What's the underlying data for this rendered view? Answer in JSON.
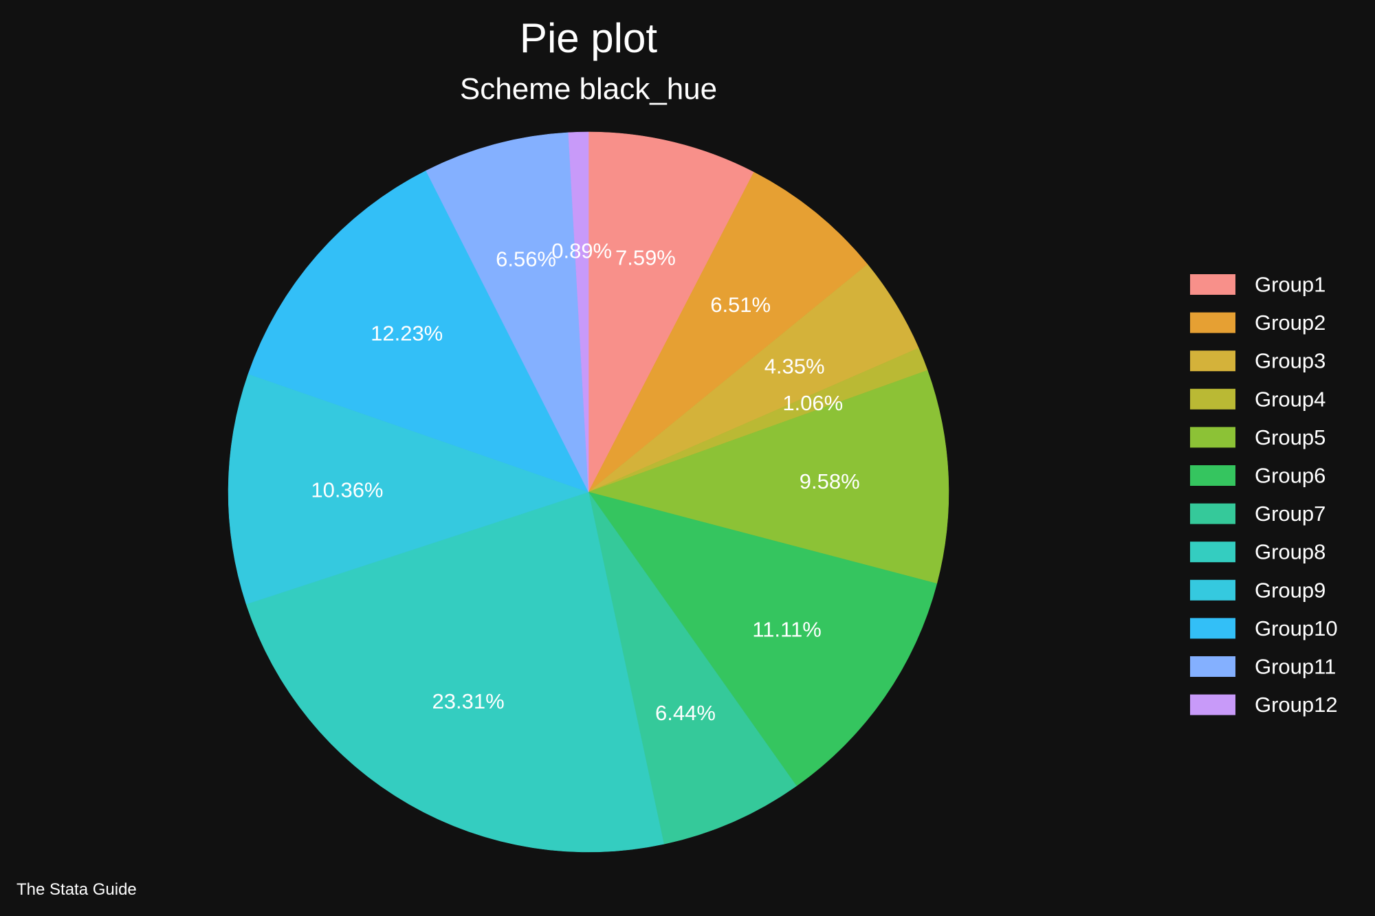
{
  "chart_data": {
    "type": "pie",
    "title": "Pie plot",
    "subtitle": "Scheme black_hue",
    "caption": "The Stata Guide",
    "legend_position": "right",
    "start": "12 o'clock, clockwise",
    "background": "#111111",
    "slices": [
      {
        "label": "Group1",
        "value": 7.59,
        "text": "7.59%",
        "color": "#F8908A"
      },
      {
        "label": "Group2",
        "value": 6.51,
        "text": "6.51%",
        "color": "#E6A033"
      },
      {
        "label": "Group3",
        "value": 4.35,
        "text": "4.35%",
        "color": "#D4B23A"
      },
      {
        "label": "Group4",
        "value": 1.06,
        "text": "1.06%",
        "color": "#BAB934"
      },
      {
        "label": "Group5",
        "value": 9.58,
        "text": "9.58%",
        "color": "#8CC236"
      },
      {
        "label": "Group6",
        "value": 11.11,
        "text": "11.11%",
        "color": "#35C55F"
      },
      {
        "label": "Group7",
        "value": 6.44,
        "text": "6.44%",
        "color": "#35C99A"
      },
      {
        "label": "Group8",
        "value": 23.31,
        "text": "23.31%",
        "color": "#34CDC0"
      },
      {
        "label": "Group9",
        "value": 10.36,
        "text": "10.36%",
        "color": "#35C9DF"
      },
      {
        "label": "Group10",
        "value": 12.23,
        "text": "12.23%",
        "color": "#33BFF7"
      },
      {
        "label": "Group11",
        "value": 6.56,
        "text": "6.56%",
        "color": "#84B0FF"
      },
      {
        "label": "Group12",
        "value": 0.89,
        "text": "0.89%",
        "color": "#C89AF9"
      }
    ]
  }
}
